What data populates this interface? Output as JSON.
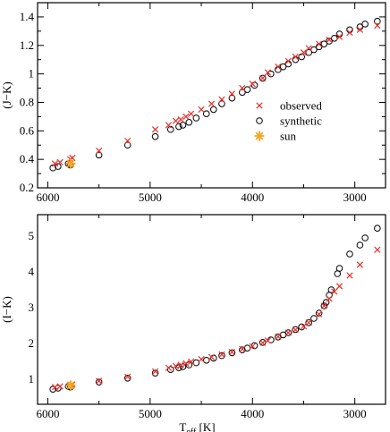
{
  "chart_data": [
    {
      "type": "scatter",
      "xlabel": "",
      "ylabel": "(J−K)",
      "xlim": [
        6100,
        2700
      ],
      "ylim": [
        0.2,
        1.5
      ],
      "xticks": [
        6000,
        5000,
        4000,
        3000
      ],
      "xtick_labels": [
        "6000",
        "5000",
        "4000",
        "3000"
      ],
      "yticks": [
        0.2,
        0.4,
        0.6,
        0.8,
        1.0,
        1.2,
        1.4
      ],
      "ytick_labels": [
        "0.2",
        "0.4",
        "0.6",
        "0.8",
        "1",
        "1.2",
        "1.4"
      ],
      "legend": {
        "placement": "right",
        "entries": [
          "observed",
          "synthetic",
          "sun"
        ]
      },
      "colors": {
        "observed": "#e8302a",
        "synthetic": "#000000",
        "sun": "#f5a623"
      },
      "series": [
        {
          "name": "observed",
          "marker": "x",
          "x": [
            5930,
            5880,
            5780,
            5760,
            5500,
            5220,
            4950,
            4820,
            4750,
            4700,
            4650,
            4600,
            4500,
            4400,
            4300,
            4200,
            4100,
            4000,
            3900,
            3850,
            3750,
            3650,
            3580,
            3500,
            3450,
            3350,
            3250,
            3150,
            3050,
            2950,
            2780
          ],
          "y": [
            0.37,
            0.38,
            0.4,
            0.41,
            0.46,
            0.53,
            0.61,
            0.64,
            0.67,
            0.68,
            0.7,
            0.72,
            0.75,
            0.79,
            0.82,
            0.86,
            0.9,
            0.93,
            0.97,
            1.01,
            1.05,
            1.09,
            1.12,
            1.15,
            1.18,
            1.21,
            1.24,
            1.26,
            1.29,
            1.31,
            1.34
          ]
        },
        {
          "name": "synthetic",
          "marker": "circle",
          "x": [
            5950,
            5900,
            5800,
            5780,
            5500,
            5220,
            4950,
            4800,
            4720,
            4680,
            4620,
            4550,
            4450,
            4380,
            4300,
            4200,
            4100,
            4050,
            3980,
            3900,
            3820,
            3750,
            3700,
            3650,
            3580,
            3520,
            3450,
            3400,
            3350,
            3300,
            3250,
            3200,
            3150,
            3050,
            2950,
            2900,
            2780
          ],
          "y": [
            0.34,
            0.35,
            0.37,
            0.36,
            0.43,
            0.5,
            0.56,
            0.61,
            0.63,
            0.64,
            0.66,
            0.69,
            0.72,
            0.75,
            0.79,
            0.83,
            0.87,
            0.89,
            0.92,
            0.97,
            1.0,
            1.03,
            1.05,
            1.07,
            1.1,
            1.12,
            1.15,
            1.17,
            1.19,
            1.21,
            1.23,
            1.25,
            1.28,
            1.31,
            1.33,
            1.35,
            1.37
          ]
        },
        {
          "name": "sun",
          "marker": "star",
          "x": [
            5777
          ],
          "y": [
            0.37
          ]
        }
      ]
    },
    {
      "type": "scatter",
      "xlabel": "T",
      "xlabel_sub": "eff",
      "xlabel_unit": "[K]",
      "ylabel": "(I−K)",
      "xlim": [
        6100,
        2700
      ],
      "ylim": [
        0.3,
        5.6
      ],
      "xticks": [
        6000,
        5000,
        4000,
        3000
      ],
      "xtick_labels": [
        "6000",
        "5000",
        "4000",
        "3000"
      ],
      "yticks": [
        1,
        2,
        3,
        4,
        5
      ],
      "ytick_labels": [
        "1",
        "2",
        "3",
        "4",
        "5"
      ],
      "colors": {
        "observed": "#e8302a",
        "synthetic": "#000000",
        "sun": "#f5a623"
      },
      "series": [
        {
          "name": "observed",
          "marker": "x",
          "x": [
            5930,
            5880,
            5780,
            5760,
            5500,
            5220,
            4950,
            4820,
            4750,
            4700,
            4650,
            4600,
            4500,
            4400,
            4300,
            4200,
            4100,
            4000,
            3900,
            3850,
            3750,
            3650,
            3580,
            3500,
            3450,
            3350,
            3300,
            3250,
            3200,
            3150,
            3050,
            2950,
            2780
          ],
          "y": [
            0.78,
            0.8,
            0.82,
            0.85,
            0.95,
            1.07,
            1.22,
            1.32,
            1.37,
            1.4,
            1.44,
            1.49,
            1.56,
            1.62,
            1.69,
            1.76,
            1.84,
            1.92,
            2.02,
            2.08,
            2.19,
            2.3,
            2.38,
            2.48,
            2.58,
            2.82,
            3.05,
            3.25,
            3.45,
            3.6,
            3.9,
            4.2,
            4.62
          ]
        },
        {
          "name": "synthetic",
          "marker": "circle",
          "x": [
            5950,
            5900,
            5800,
            5780,
            5500,
            5220,
            4950,
            4800,
            4720,
            4680,
            4620,
            4550,
            4450,
            4380,
            4300,
            4200,
            4100,
            4050,
            3980,
            3900,
            3820,
            3750,
            3700,
            3650,
            3580,
            3520,
            3450,
            3400,
            3350,
            3300,
            3280,
            3250,
            3230,
            3170,
            3150,
            3050,
            2950,
            2900,
            2780
          ],
          "y": [
            0.72,
            0.75,
            0.8,
            0.78,
            0.92,
            1.03,
            1.17,
            1.27,
            1.32,
            1.35,
            1.4,
            1.46,
            1.53,
            1.59,
            1.66,
            1.74,
            1.82,
            1.87,
            1.94,
            2.03,
            2.1,
            2.18,
            2.24,
            2.3,
            2.39,
            2.46,
            2.58,
            2.7,
            2.85,
            3.05,
            3.15,
            3.35,
            3.5,
            3.95,
            4.1,
            4.5,
            4.75,
            4.95,
            5.22
          ]
        },
        {
          "name": "sun",
          "marker": "star",
          "x": [
            5777
          ],
          "y": [
            0.83
          ]
        }
      ]
    }
  ]
}
